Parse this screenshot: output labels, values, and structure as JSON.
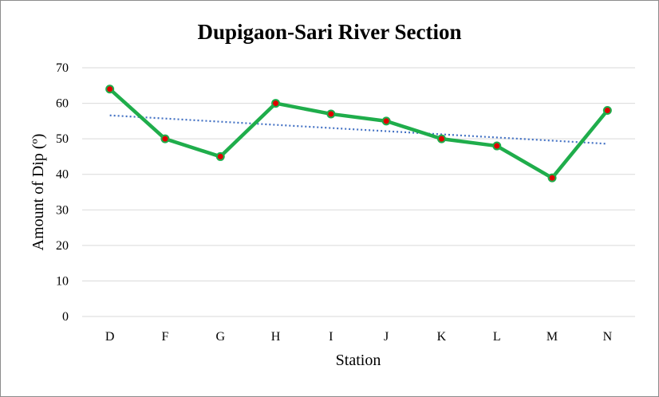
{
  "chart_data": {
    "type": "line",
    "title": "Dupigaon-Sari River Section",
    "xlabel": "Station",
    "ylabel": "Amount of  Dip (º)",
    "categories": [
      "D",
      "F",
      "G",
      "H",
      "I",
      "J",
      "K",
      "L",
      "M",
      "N"
    ],
    "series": [
      {
        "values": [
          64,
          50,
          45,
          60,
          57,
          55,
          50,
          48,
          39,
          58
        ],
        "color": "#1fad4b",
        "marker_color": "#e00000"
      }
    ],
    "trendline": {
      "type": "linear",
      "style": "dotted",
      "color": "#4472c4",
      "start": 56.6,
      "end": 48.6
    },
    "yticks": [
      0,
      10,
      20,
      30,
      40,
      50,
      60,
      70
    ],
    "ylim": [
      0,
      70
    ],
    "grid": true,
    "legend": "none"
  }
}
